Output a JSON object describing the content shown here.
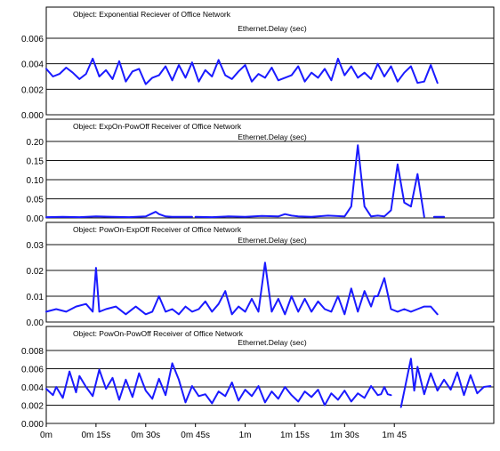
{
  "chart_data": [
    {
      "type": "line",
      "title": "Object: Exponential Reciever of Office Network",
      "subtitle": "Ethernet.Delay (sec)",
      "ylim": [
        0,
        0.006
      ],
      "yticks": [
        "0.000",
        "0.002",
        "0.004",
        "0.006"
      ],
      "grid": true,
      "series": [
        {
          "color": "#1a1aff",
          "x": [
            0,
            2,
            4,
            6,
            8,
            10,
            12,
            14,
            16,
            18,
            20,
            22,
            24,
            26,
            28,
            30,
            32,
            34,
            36,
            38,
            40,
            42,
            44,
            46,
            48,
            50,
            52,
            54,
            56,
            58,
            60,
            62,
            64,
            66,
            68,
            70,
            72,
            74,
            76,
            78,
            80,
            82,
            84,
            86,
            88,
            90,
            92,
            94,
            96,
            98,
            100,
            102,
            104,
            106,
            108,
            110,
            112,
            114,
            116,
            118
          ],
          "y": [
            0.0036,
            0.003,
            0.0032,
            0.0037,
            0.0033,
            0.0028,
            0.0032,
            0.0044,
            0.003,
            0.0035,
            0.0028,
            0.0042,
            0.0026,
            0.0034,
            0.0036,
            0.0024,
            0.0029,
            0.0031,
            0.0038,
            0.0027,
            0.0039,
            0.0029,
            0.0041,
            0.0026,
            0.0035,
            0.003,
            0.0043,
            0.0031,
            0.0028,
            0.0034,
            0.0039,
            0.0026,
            0.0032,
            0.0029,
            0.0037,
            0.0027,
            0.0029,
            0.0031,
            0.0038,
            0.0026,
            0.0033,
            0.0029,
            0.0036,
            0.0027,
            0.0044,
            0.0031,
            0.0038,
            0.0029,
            0.0033,
            0.0028,
            0.004,
            0.003,
            0.0038,
            0.0026,
            0.0033,
            0.0038,
            0.0025,
            0.0026,
            0.0039,
            0.0025
          ]
        }
      ]
    },
    {
      "type": "line",
      "title": "Object: ExpOn-PowOff Receiver of Office Network",
      "subtitle": "Ethernet.Delay (sec)",
      "ylim": [
        0,
        0.2
      ],
      "yticks": [
        "0.00",
        "0.05",
        "0.10",
        "0.15",
        "0.20"
      ],
      "grid": true,
      "series": [
        {
          "color": "#1a1aff",
          "segments": [
            {
              "x": [
                0,
                5,
                10,
                15,
                20,
                25,
                30,
                32,
                33,
                34,
                36,
                38,
                40,
                44
              ],
              "y": [
                0.002,
                0.003,
                0.002,
                0.004,
                0.003,
                0.002,
                0.004,
                0.012,
                0.016,
                0.01,
                0.004,
                0.003,
                0.003,
                0.003
              ]
            },
            {
              "x": [
                45,
                50,
                55,
                60,
                65,
                70,
                72,
                74,
                76,
                80,
                85,
                90,
                92,
                94,
                96,
                98,
                100,
                102,
                104,
                106,
                108,
                110
              ],
              "y": [
                0.003,
                0.002,
                0.004,
                0.003,
                0.005,
                0.004,
                0.01,
                0.006,
                0.004,
                0.003,
                0.006,
                0.004,
                0.03,
                0.19,
                0.03,
                0.004,
                0.006,
                0.004,
                0.02,
                0.14,
                0.04,
                0.03
              ]
            },
            {
              "x": [
                110,
                112,
                114
              ],
              "y": [
                0.03,
                0.115,
                0.003
              ]
            },
            {
              "x": [
                117,
                120
              ],
              "y": [
                0.003,
                0.003
              ]
            }
          ]
        }
      ]
    },
    {
      "type": "line",
      "title": "Object: PowOn-ExpOff Receiver of Office Network",
      "subtitle": "Ethernet.Delay (sec)",
      "ylim": [
        0,
        0.03
      ],
      "yticks": [
        "0.00",
        "0.01",
        "0.02",
        "0.03"
      ],
      "grid": true,
      "series": [
        {
          "color": "#1a1aff",
          "x": [
            0,
            3,
            6,
            9,
            12,
            14,
            15,
            16,
            18,
            21,
            24,
            27,
            30,
            32,
            34,
            36,
            38,
            40,
            42,
            44,
            46,
            48,
            50,
            52,
            54,
            56,
            58,
            60,
            62,
            64,
            66,
            68,
            70,
            72,
            74,
            76,
            78,
            80,
            82,
            84,
            86,
            88,
            90,
            92,
            94,
            96,
            98,
            99,
            100,
            102,
            104,
            106,
            108,
            110,
            112,
            114,
            116,
            118
          ],
          "y": [
            0.004,
            0.005,
            0.004,
            0.006,
            0.007,
            0.004,
            0.021,
            0.004,
            0.005,
            0.006,
            0.003,
            0.006,
            0.003,
            0.004,
            0.01,
            0.004,
            0.005,
            0.003,
            0.006,
            0.004,
            0.005,
            0.008,
            0.004,
            0.007,
            0.012,
            0.003,
            0.006,
            0.004,
            0.009,
            0.004,
            0.023,
            0.004,
            0.009,
            0.003,
            0.01,
            0.004,
            0.009,
            0.004,
            0.008,
            0.005,
            0.004,
            0.01,
            0.003,
            0.013,
            0.004,
            0.012,
            0.006,
            0.01,
            0.01,
            0.017,
            0.005,
            0.004,
            0.005,
            0.004,
            0.005,
            0.006,
            0.006,
            0.003
          ]
        }
      ]
    },
    {
      "type": "line",
      "title": "Object: PowOn-PowOff Receiver of Office Network",
      "subtitle": "Ethernet.Delay (sec)",
      "ylim": [
        0,
        0.008
      ],
      "yticks": [
        "0.000",
        "0.002",
        "0.004",
        "0.006",
        "0.008"
      ],
      "grid": true,
      "xlim": [
        0,
        135
      ],
      "xticks": [
        {
          "value": 0,
          "label": "0m"
        },
        {
          "value": 15,
          "label": "0m 15s"
        },
        {
          "value": 30,
          "label": "0m 30s"
        },
        {
          "value": 45,
          "label": "0m 45s"
        },
        {
          "value": 60,
          "label": "1m"
        },
        {
          "value": 75,
          "label": "1m 15s"
        },
        {
          "value": 90,
          "label": "1m 30s"
        },
        {
          "value": 105,
          "label": "1m 45"
        }
      ],
      "series": [
        {
          "color": "#1a1aff",
          "segments": [
            {
              "x": [
                0,
                2,
                3,
                5,
                7,
                9,
                10,
                12,
                14,
                16,
                18,
                20,
                22,
                24,
                26,
                28,
                30,
                32,
                34,
                36,
                38,
                40,
                42,
                44,
                46,
                48,
                50,
                52,
                54,
                56,
                58,
                60,
                62,
                64,
                66,
                68,
                70,
                72,
                74,
                76,
                78,
                80,
                82,
                84,
                86,
                88,
                90,
                92,
                94,
                96,
                98,
                100,
                101,
                102,
                103,
                104
              ],
              "y": [
                0.0038,
                0.0031,
                0.004,
                0.0028,
                0.0057,
                0.0034,
                0.0052,
                0.004,
                0.003,
                0.0059,
                0.0038,
                0.005,
                0.0026,
                0.0048,
                0.0029,
                0.0055,
                0.0036,
                0.0027,
                0.0049,
                0.0031,
                0.0066,
                0.0048,
                0.0023,
                0.0041,
                0.003,
                0.0032,
                0.0022,
                0.0035,
                0.003,
                0.0045,
                0.0025,
                0.0037,
                0.003,
                0.0041,
                0.0023,
                0.0035,
                0.0027,
                0.004,
                0.0031,
                0.0024,
                0.0035,
                0.0029,
                0.0037,
                0.002,
                0.0033,
                0.0026,
                0.0036,
                0.0024,
                0.0033,
                0.0028,
                0.0041,
                0.0031,
                0.0032,
                0.004,
                0.0032,
                0.0031
              ]
            },
            {
              "x": [
                107,
                110,
                111,
                112,
                114,
                116,
                118,
                120,
                122,
                124,
                126,
                128,
                130,
                132,
                134
              ],
              "y": [
                0.0018,
                0.0071,
                0.0036,
                0.0062,
                0.0032,
                0.0055,
                0.0036,
                0.0048,
                0.0037,
                0.0056,
                0.0031,
                0.0053,
                0.0033,
                0.004,
                0.0041
              ]
            }
          ]
        }
      ]
    }
  ]
}
